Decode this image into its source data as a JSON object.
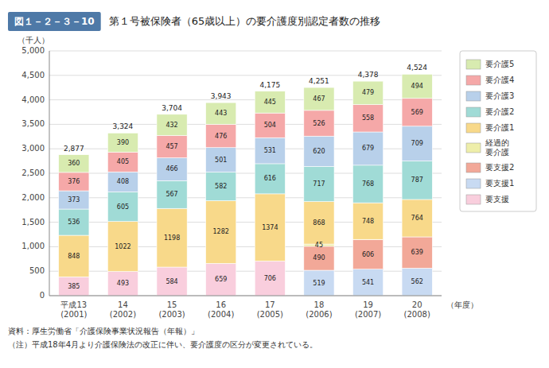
{
  "chart_data": {
    "type": "bar",
    "stacked": true,
    "title": "第１号被保険者（65歳以上）の要介護度別認定者数の推移",
    "y_label": "（千人）",
    "x_label": "（年度）",
    "annotations": [
      "図１－２－３－10",
      "資料：厚生労働省「介護保険事業状況報告（年報）」",
      "（注）平成18年4月より介護保険法の改正に伴い、要介護度の区分が変更されている。"
    ],
    "categories": [
      "平成13\n(2001)",
      "14\n(2002)",
      "15\n(2003)",
      "16\n(2004)",
      "17\n(2005)",
      "18\n(2006)",
      "19\n(2007)",
      "20\n(2008)"
    ],
    "series": [
      {
        "name": "要支援",
        "color": "#f9cedd",
        "values": [
          385,
          493,
          584,
          659,
          706,
          0,
          0,
          0
        ],
        "value_labels": [
          "385",
          "493",
          "584",
          "659",
          "706",
          null,
          null,
          null
        ]
      },
      {
        "name": "要支援1",
        "color": "#c8daf2",
        "values": [
          0,
          0,
          0,
          0,
          0,
          519,
          541,
          562
        ],
        "value_labels": [
          null,
          null,
          null,
          null,
          null,
          "519",
          "541",
          "562"
        ]
      },
      {
        "name": "要支援2",
        "color": "#f2a898",
        "values": [
          0,
          0,
          0,
          0,
          0,
          490,
          606,
          639
        ],
        "value_labels": [
          null,
          null,
          null,
          null,
          null,
          "490",
          "606",
          "639"
        ]
      },
      {
        "name": "経過的\n要介護",
        "color": "#eeeeaa",
        "values": [
          0,
          0,
          0,
          0,
          0,
          45,
          2,
          0
        ],
        "value_labels": [
          null,
          null,
          null,
          null,
          null,
          "45",
          null,
          null
        ]
      },
      {
        "name": "要介護1",
        "color": "#f8d98a",
        "values": [
          848,
          1022,
          1198,
          1282,
          1374,
          868,
          748,
          764
        ],
        "value_labels": [
          "848",
          "1022",
          "1198",
          "1282",
          "1374",
          "868",
          "748",
          "764"
        ]
      },
      {
        "name": "要介護2",
        "color": "#a0dbd6",
        "values": [
          536,
          605,
          567,
          582,
          616,
          717,
          768,
          787
        ],
        "value_labels": [
          "536",
          "605",
          "567",
          "582",
          "616",
          "717",
          "768",
          "787"
        ]
      },
      {
        "name": "要介護3",
        "color": "#b8d0ea",
        "values": [
          373,
          408,
          466,
          501,
          531,
          620,
          679,
          709
        ],
        "value_labels": [
          "373",
          "408",
          "466",
          "501",
          "531",
          "620",
          "679",
          "709"
        ]
      },
      {
        "name": "要介護4",
        "color": "#f5a8a8",
        "values": [
          376,
          405,
          457,
          476,
          504,
          526,
          558,
          569
        ],
        "value_labels": [
          "376",
          "405",
          "457",
          "476",
          "504",
          "526",
          "558",
          "569"
        ]
      },
      {
        "name": "要介護5",
        "color": "#d8ebb0",
        "values": [
          360,
          390,
          432,
          443,
          445,
          467,
          479,
          494
        ],
        "value_labels": [
          "360",
          "390",
          "432",
          "443",
          "445",
          "467",
          "479",
          "494"
        ]
      }
    ],
    "totals": [
      2877,
      3324,
      3704,
      3943,
      4175,
      4251,
      4378,
      4524
    ],
    "total_labels": [
      "2,877",
      "3,324",
      "3,704",
      "3,943",
      "4,175",
      "4,251",
      "4,378",
      "4,524"
    ],
    "ylim": [
      0,
      5000
    ],
    "yticks": [
      0,
      500,
      {
        "value": 1000,
        "label": "1,000"
      },
      {
        "value": 1500,
        "label": "1,500"
      },
      {
        "value": 2000,
        "label": "2,000"
      },
      {
        "value": 2500,
        "label": "2,500"
      },
      {
        "value": 3000,
        "label": "3,000"
      },
      {
        "value": 3500,
        "label": "3,500"
      },
      {
        "value": 4000,
        "label": "4,000"
      },
      {
        "value": 4500,
        "label": "4,500"
      },
      {
        "value": 5000,
        "label": "5,000"
      }
    ],
    "grid": true,
    "data_labels": true,
    "legend": "right"
  }
}
